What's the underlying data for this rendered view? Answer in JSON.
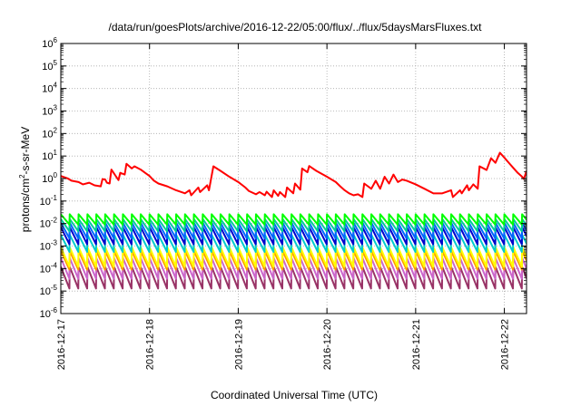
{
  "chart_data": {
    "type": "line",
    "title": "/data/run/goesPlots/archive/2016-12-22/05:00/flux/../flux/5daysMarsFluxes.txt",
    "xlabel": "Coordinated Universal Time (UTC)",
    "ylabel": {
      "prefix": "protons/cm",
      "sup": "2",
      "suffix": "-s-sr-MeV"
    },
    "scale_y": "log",
    "ylim_exp": [
      -6,
      6
    ],
    "ytick_exponents": [
      6,
      5,
      4,
      3,
      2,
      1,
      0,
      -1,
      -2,
      -3,
      -4,
      -5,
      -6
    ],
    "xlim": [
      0,
      5.25
    ],
    "x_unit": "days since 2016-12-17 00:00 UTC",
    "xticks": [
      {
        "x": 0,
        "label": "2016-12-17"
      },
      {
        "x": 1,
        "label": "2016-12-18"
      },
      {
        "x": 2,
        "label": "2016-12-19"
      },
      {
        "x": 3,
        "label": "2016-12-20"
      },
      {
        "x": 4,
        "label": "2016-12-21"
      },
      {
        "x": 5,
        "label": "2016-12-22"
      }
    ],
    "grid": true,
    "grid_style": "dotted",
    "series": [
      {
        "color": "#ff0000",
        "x": [
          0.0,
          0.08,
          0.12,
          0.2,
          0.25,
          0.32,
          0.38,
          0.45,
          0.47,
          0.5,
          0.52,
          0.55,
          0.57,
          0.65,
          0.67,
          0.72,
          0.74,
          0.8,
          0.83,
          0.9,
          0.95,
          1.0,
          1.05,
          1.1,
          1.2,
          1.3,
          1.4,
          1.45,
          1.47,
          1.55,
          1.57,
          1.65,
          1.67,
          1.72,
          1.8,
          1.9,
          2.0,
          2.08,
          2.12,
          2.2,
          2.24,
          2.3,
          2.32,
          2.38,
          2.4,
          2.45,
          2.47,
          2.53,
          2.55,
          2.62,
          2.64,
          2.7,
          2.72,
          2.78,
          2.8,
          2.88,
          3.0,
          3.1,
          3.15,
          3.2,
          3.25,
          3.3,
          3.35,
          3.4,
          3.42,
          3.5,
          3.55,
          3.6,
          3.65,
          3.7,
          3.75,
          3.8,
          3.85,
          3.9,
          4.0,
          4.1,
          4.2,
          4.3,
          4.4,
          4.42,
          4.5,
          4.52,
          4.58,
          4.6,
          4.65,
          4.7,
          4.72,
          4.8,
          4.85,
          4.9,
          4.95,
          5.0,
          5.05,
          5.1,
          5.15,
          5.2,
          5.22,
          5.25
        ],
        "y": [
          1.3,
          1.0,
          0.8,
          0.7,
          0.55,
          0.65,
          0.5,
          0.45,
          0.95,
          0.9,
          0.65,
          0.6,
          2.5,
          0.85,
          1.8,
          1.5,
          4.5,
          2.8,
          3.5,
          2.5,
          1.8,
          1.3,
          0.8,
          0.6,
          0.45,
          0.3,
          0.22,
          0.3,
          0.18,
          0.4,
          0.25,
          0.5,
          0.3,
          3.5,
          2.2,
          1.2,
          0.7,
          0.4,
          0.28,
          0.2,
          0.25,
          0.18,
          0.26,
          0.15,
          0.3,
          0.17,
          0.25,
          0.15,
          0.4,
          0.22,
          0.6,
          0.32,
          2.8,
          1.9,
          3.6,
          2.2,
          1.2,
          0.7,
          0.45,
          0.3,
          0.22,
          0.18,
          0.2,
          0.15,
          0.6,
          0.35,
          0.8,
          0.35,
          1.2,
          0.6,
          1.5,
          0.7,
          0.9,
          0.8,
          0.55,
          0.35,
          0.22,
          0.22,
          0.3,
          0.15,
          0.3,
          0.22,
          0.5,
          0.3,
          0.55,
          0.35,
          3.5,
          2.4,
          8.0,
          5.0,
          14,
          8.5,
          5.0,
          3.0,
          1.8,
          1.2,
          0.95,
          2.2
        ]
      }
    ],
    "sawtooth_series": [
      {
        "color": "#00ff00",
        "low": 0.009,
        "high": 0.026
      },
      {
        "color": "#00cc99",
        "low": 0.0045,
        "high": 0.016
      },
      {
        "color": "#0066ff",
        "low": 0.0022,
        "high": 0.011
      },
      {
        "color": "#0000cc",
        "low": 0.0012,
        "high": 0.007
      },
      {
        "color": "#00cccc",
        "low": 0.00055,
        "high": 0.0032
      },
      {
        "color": "#ffff00",
        "low": 0.00012,
        "high": 0.0009
      },
      {
        "color": "#ff9900",
        "low": 9e-05,
        "high": 0.0006
      },
      {
        "color": "#cc66cc",
        "low": 3.5e-05,
        "high": 0.0003
      },
      {
        "color": "#993366",
        "low": 1.3e-05,
        "high": 0.00012
      }
    ],
    "sawtooth_period_days": 0.1
  }
}
